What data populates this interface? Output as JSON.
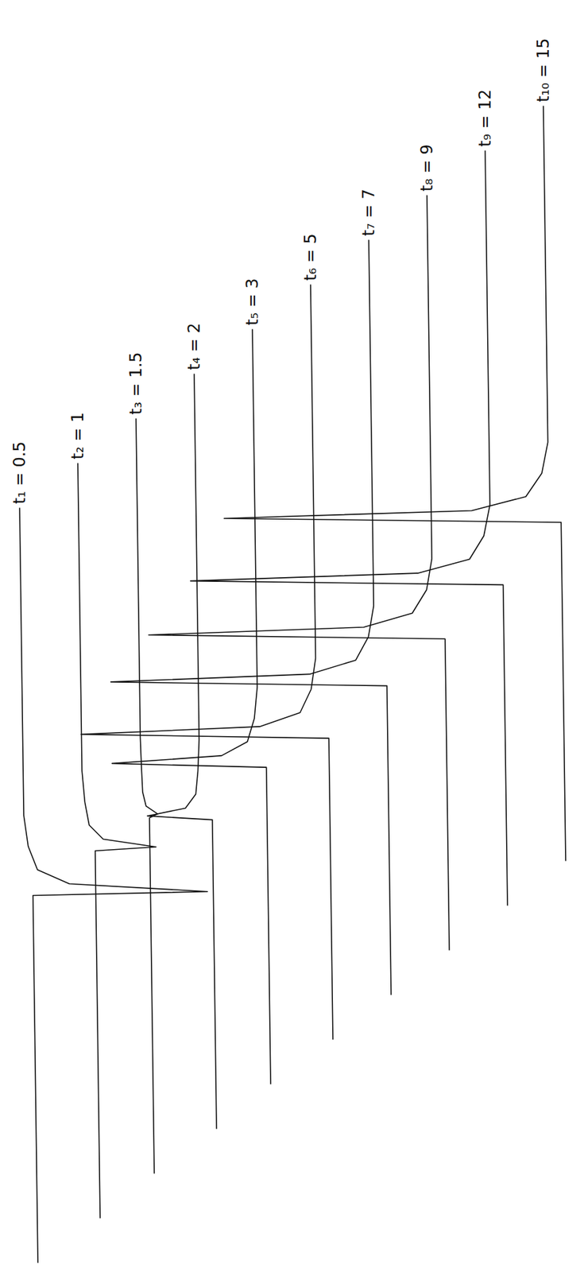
{
  "chart_data": {
    "type": "line",
    "tick_labels": false,
    "grid": false,
    "color": "#111111",
    "xlim": [
      0,
      97
    ],
    "ylim": [
      -45,
      25
    ],
    "series": [
      {
        "name": "t₁ = 0.5",
        "x": [
          0,
          47.2,
          47.7,
          48.7,
          50.5,
          53.5,
          57.5,
          97
        ],
        "values": [
          1,
          1,
          22.5,
          5.5,
          1.6,
          0.5,
          0,
          0
        ]
      },
      {
        "name": "t₂ = 1",
        "x": [
          0,
          47.2,
          47.7,
          48.7,
          50.5,
          53.5,
          57.5,
          97
        ],
        "values": [
          1.5,
          1.5,
          9,
          2.5,
          0.8,
          0.3,
          0,
          0
        ]
      },
      {
        "name": "t₃ = 1.5",
        "x": [
          0,
          45.7,
          46.2,
          47.2,
          49,
          52,
          56,
          97
        ],
        "values": [
          1,
          1,
          2,
          0.6,
          0.2,
          0.1,
          0,
          0
        ]
      },
      {
        "name": "t₄ = 2",
        "x": [
          0,
          39.7,
          40.2,
          41.2,
          43,
          46,
          50,
          97
        ],
        "values": [
          1.5,
          1.5,
          -6.5,
          -1.8,
          -0.5,
          -0.2,
          0,
          0
        ]
      },
      {
        "name": "t₅ = 3",
        "x": [
          0,
          40.7,
          41.2,
          42.2,
          44,
          47,
          51,
          97
        ],
        "values": [
          1,
          1,
          -18,
          -4.5,
          -1.3,
          -0.4,
          0,
          0
        ]
      },
      {
        "name": "t₆ = 5",
        "x": [
          0,
          38.7,
          39.2,
          40.2,
          42,
          45,
          49,
          97
        ],
        "values": [
          1.5,
          1.5,
          -29,
          -7,
          -2,
          -0.6,
          0,
          0
        ]
      },
      {
        "name": "t₇ = 7",
        "x": [
          0,
          39.7,
          40.2,
          41.2,
          43,
          46,
          50,
          97
        ],
        "values": [
          1.5,
          1.5,
          -32.5,
          -8,
          -2.3,
          -0.7,
          0,
          0
        ]
      },
      {
        "name": "t₈ = 9",
        "x": [
          0,
          40,
          40.5,
          41.5,
          43.3,
          46.3,
          50.3,
          97
        ],
        "values": [
          1.5,
          1.5,
          -35,
          -8.5,
          -2.5,
          -0.7,
          0,
          0
        ]
      },
      {
        "name": "t₉ = 12",
        "x": [
          0,
          41.2,
          41.7,
          42.7,
          44.5,
          47.5,
          51.5,
          97
        ],
        "values": [
          1.5,
          1.5,
          -37,
          -9,
          -2.6,
          -0.8,
          0,
          0
        ]
      },
      {
        "name": "t₁₀ = 15",
        "x": [
          0,
          43.5,
          44,
          45,
          46.8,
          49.8,
          53.8,
          97
        ],
        "values": [
          1.5,
          1.5,
          -40,
          -9.5,
          -2.8,
          -0.8,
          0,
          0
        ]
      }
    ]
  }
}
